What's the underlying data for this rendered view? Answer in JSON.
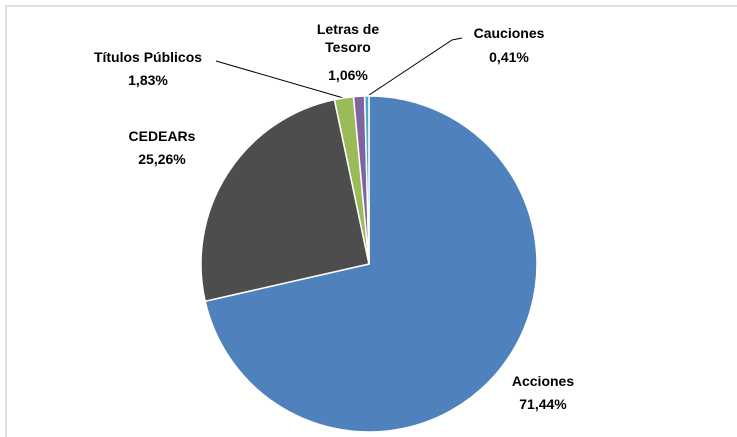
{
  "chart_data": {
    "type": "pie",
    "categories": [
      "Acciones",
      "CEDEARs",
      "Títulos Públicos",
      "Letras de Tesoro",
      "Cauciones"
    ],
    "values": [
      71.44,
      25.26,
      1.83,
      1.06,
      0.41
    ],
    "value_labels": [
      "71,44%",
      "25,26%",
      "1,83%",
      "1,06%",
      "0,41%"
    ],
    "colors": [
      "#4f81bd",
      "#4d4d4d",
      "#9bbb59",
      "#8064a2",
      "#4bacc6"
    ]
  }
}
